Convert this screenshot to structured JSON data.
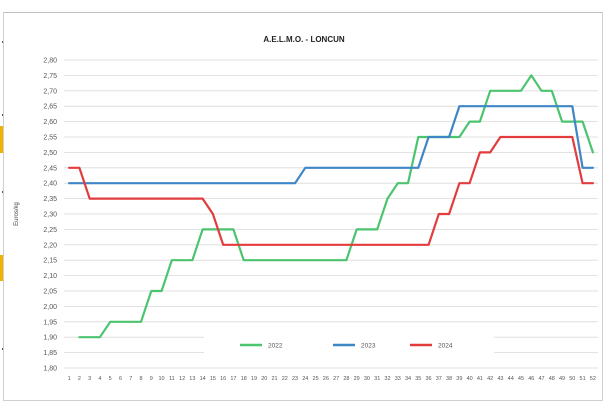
{
  "chart_data": {
    "type": "line",
    "title": "A.E.L.M.O. - LONCUN",
    "xlabel": "",
    "ylabel": "Euros/kg",
    "categories": [
      "1",
      "2",
      "3",
      "4",
      "5",
      "6",
      "7",
      "8",
      "9",
      "10",
      "11",
      "12",
      "13",
      "14",
      "15",
      "16",
      "17",
      "18",
      "19",
      "20",
      "21",
      "22",
      "23",
      "24",
      "25",
      "26",
      "27",
      "28",
      "29",
      "30",
      "31",
      "32",
      "33",
      "34",
      "35",
      "36",
      "37",
      "38",
      "39",
      "40",
      "41",
      "42",
      "43",
      "44",
      "45",
      "46",
      "47",
      "48",
      "49",
      "50",
      "51",
      "52"
    ],
    "ylim": [
      1.8,
      2.8
    ],
    "yticks": [
      "1,80",
      "1,85",
      "1,90",
      "1,95",
      "2,00",
      "2,05",
      "2,10",
      "2,15",
      "2,20",
      "2,25",
      "2,30",
      "2,35",
      "2,40",
      "2,45",
      "2,50",
      "2,55",
      "2,60",
      "2,65",
      "2,70",
      "2,75",
      "2,80"
    ],
    "grid": true,
    "legend_position": "bottom-inside",
    "series": [
      {
        "name": "2022",
        "color": "#4cc46f",
        "values": [
          null,
          1.9,
          1.9,
          1.9,
          1.95,
          1.95,
          1.95,
          1.95,
          2.05,
          2.05,
          2.15,
          2.15,
          2.15,
          2.25,
          2.25,
          2.25,
          2.25,
          2.15,
          2.15,
          2.15,
          2.15,
          2.15,
          2.15,
          2.15,
          2.15,
          2.15,
          2.15,
          2.15,
          2.25,
          2.25,
          2.25,
          2.35,
          2.4,
          2.4,
          2.55,
          2.55,
          2.55,
          2.55,
          2.55,
          2.6,
          2.6,
          2.7,
          2.7,
          2.7,
          2.7,
          2.75,
          2.7,
          2.7,
          2.6,
          2.6,
          2.6,
          2.5
        ]
      },
      {
        "name": "2023",
        "color": "#3f86c6",
        "values": [
          2.4,
          2.4,
          2.4,
          2.4,
          2.4,
          2.4,
          2.4,
          2.4,
          2.4,
          2.4,
          2.4,
          2.4,
          2.4,
          2.4,
          2.4,
          2.4,
          2.4,
          2.4,
          2.4,
          2.4,
          2.4,
          2.4,
          2.4,
          2.45,
          2.45,
          2.45,
          2.45,
          2.45,
          2.45,
          2.45,
          2.45,
          2.45,
          2.45,
          2.45,
          2.45,
          2.55,
          2.55,
          2.55,
          2.65,
          2.65,
          2.65,
          2.65,
          2.65,
          2.65,
          2.65,
          2.65,
          2.65,
          2.65,
          2.65,
          2.65,
          2.45,
          2.45
        ]
      },
      {
        "name": "2024",
        "color": "#e23c3c",
        "values": [
          2.45,
          2.45,
          2.35,
          2.35,
          2.35,
          2.35,
          2.35,
          2.35,
          2.35,
          2.35,
          2.35,
          2.35,
          2.35,
          2.35,
          2.3,
          2.2,
          2.2,
          2.2,
          2.2,
          2.2,
          2.2,
          2.2,
          2.2,
          2.2,
          2.2,
          2.2,
          2.2,
          2.2,
          2.2,
          2.2,
          2.2,
          2.2,
          2.2,
          2.2,
          2.2,
          2.2,
          2.3,
          2.3,
          2.4,
          2.4,
          2.5,
          2.5,
          2.55,
          2.55,
          2.55,
          2.55,
          2.55,
          2.55,
          2.55,
          2.55,
          2.4,
          2.4
        ]
      }
    ]
  }
}
